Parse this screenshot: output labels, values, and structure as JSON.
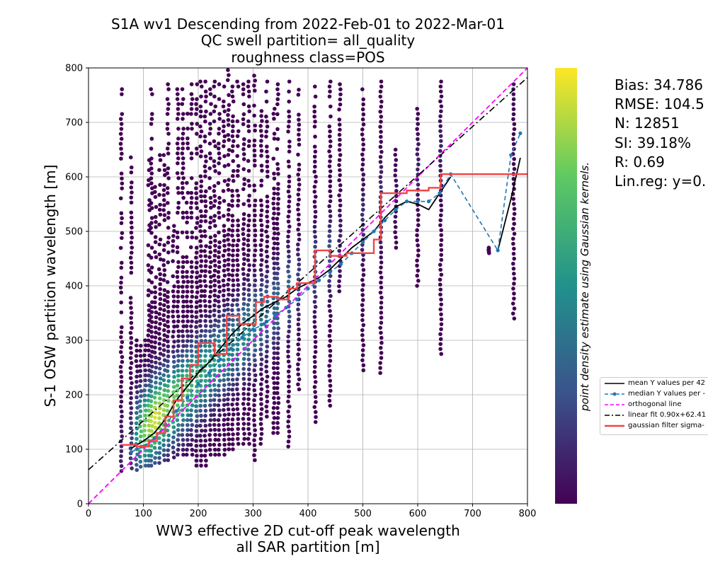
{
  "title": {
    "line1": "S1A wv1 Descending from 2022-Feb-01 to 2022-Mar-01",
    "line2": "QC swell partition= all_quality",
    "line3": "roughness class=POS"
  },
  "stats": {
    "bias": "Bias: 34.786",
    "rmse": "RMSE: 104.5",
    "n": "N: 12851",
    "si": "SI: 39.18%",
    "r": "R: 0.69",
    "linreg": "Lin.reg: y=0."
  },
  "legend": {
    "mean": "mean Y values per 42",
    "median": "median Y values per -",
    "orthogonal": "orthogonal line",
    "linfit": "linear fit 0.90x+62.41",
    "gaussian": "gaussian filter sigma-"
  },
  "colorbar_label": "point density estimate using Gaussian kernels.",
  "colors": {
    "mean_line": "#000000",
    "median_line": "#1f77b4",
    "orthogonal_line": "#ff00ff",
    "linear_fit": "#000000",
    "gaussian": "#f04545",
    "colormap": "viridis"
  },
  "chart_data": {
    "type": "scatter",
    "xlabel": "WW3 effective 2D cut-off peak wavelength\nall SAR partition [m]",
    "ylabel": "S-1 OSW partition wavelength [m]",
    "xlim": [
      0,
      800
    ],
    "ylim": [
      0,
      800
    ],
    "xticks": [
      0,
      100,
      200,
      300,
      400,
      500,
      600,
      700,
      800
    ],
    "yticks": [
      0,
      100,
      200,
      300,
      400,
      500,
      600,
      700,
      800
    ],
    "grid": true,
    "legend_position": "right, outside",
    "columns": [
      {
        "x": 60,
        "ymin": 60,
        "ymax": 770,
        "density": 0.1
      },
      {
        "x": 78,
        "ymin": 65,
        "ymax": 645,
        "density": 0.2
      },
      {
        "x": 88,
        "ymin": 62,
        "ymax": 300,
        "density": 0.5
      },
      {
        "x": 95,
        "ymin": 68,
        "ymax": 290,
        "density": 0.7
      },
      {
        "x": 103,
        "ymin": 70,
        "ymax": 300,
        "density": 0.8
      },
      {
        "x": 110,
        "ymin": 70,
        "ymax": 640,
        "density": 0.85
      },
      {
        "x": 115,
        "ymin": 70,
        "ymax": 770,
        "density": 0.9
      },
      {
        "x": 122,
        "ymin": 75,
        "ymax": 600,
        "density": 0.95
      },
      {
        "x": 130,
        "ymin": 75,
        "ymax": 640,
        "density": 0.9
      },
      {
        "x": 138,
        "ymin": 80,
        "ymax": 640,
        "density": 0.85
      },
      {
        "x": 145,
        "ymin": 80,
        "ymax": 770,
        "density": 0.8
      },
      {
        "x": 155,
        "ymin": 85,
        "ymax": 510,
        "density": 0.8
      },
      {
        "x": 163,
        "ymin": 90,
        "ymax": 770,
        "density": 0.75
      },
      {
        "x": 172,
        "ymin": 90,
        "ymax": 770,
        "density": 0.7
      },
      {
        "x": 180,
        "ymin": 90,
        "ymax": 725,
        "density": 0.7
      },
      {
        "x": 188,
        "ymin": 90,
        "ymax": 770,
        "density": 0.65
      },
      {
        "x": 197,
        "ymin": 70,
        "ymax": 770,
        "density": 0.65
      },
      {
        "x": 205,
        "ymin": 70,
        "ymax": 775,
        "density": 0.6
      },
      {
        "x": 213,
        "ymin": 70,
        "ymax": 775,
        "density": 0.6
      },
      {
        "x": 222,
        "ymin": 90,
        "ymax": 770,
        "density": 0.55
      },
      {
        "x": 230,
        "ymin": 90,
        "ymax": 775,
        "density": 0.55
      },
      {
        "x": 238,
        "ymin": 90,
        "ymax": 770,
        "density": 0.5
      },
      {
        "x": 247,
        "ymin": 90,
        "ymax": 775,
        "density": 0.5
      },
      {
        "x": 255,
        "ymin": 100,
        "ymax": 796,
        "density": 0.5
      },
      {
        "x": 263,
        "ymin": 100,
        "ymax": 775,
        "density": 0.45
      },
      {
        "x": 272,
        "ymin": 110,
        "ymax": 775,
        "density": 0.45
      },
      {
        "x": 283,
        "ymin": 110,
        "ymax": 770,
        "density": 0.5
      },
      {
        "x": 292,
        "ymin": 110,
        "ymax": 775,
        "density": 0.45
      },
      {
        "x": 303,
        "ymin": 80,
        "ymax": 795,
        "density": 0.45
      },
      {
        "x": 315,
        "ymin": 110,
        "ymax": 730,
        "density": 0.4
      },
      {
        "x": 325,
        "ymin": 160,
        "ymax": 775,
        "density": 0.35
      },
      {
        "x": 338,
        "ymin": 130,
        "ymax": 725,
        "density": 0.35
      },
      {
        "x": 345,
        "ymin": 130,
        "ymax": 770,
        "density": 0.35
      },
      {
        "x": 365,
        "ymin": 105,
        "ymax": 775,
        "density": 0.35
      },
      {
        "x": 383,
        "ymin": 210,
        "ymax": 760,
        "density": 0.2
      },
      {
        "x": 413,
        "ymin": 150,
        "ymax": 775,
        "density": 0.25
      },
      {
        "x": 440,
        "ymin": 180,
        "ymax": 775,
        "density": 0.25
      },
      {
        "x": 458,
        "ymin": 390,
        "ymax": 770,
        "density": 0.1
      },
      {
        "x": 500,
        "ymin": 245,
        "ymax": 770,
        "density": 0.15
      },
      {
        "x": 533,
        "ymin": 240,
        "ymax": 775,
        "density": 0.2
      },
      {
        "x": 560,
        "ymin": 470,
        "ymax": 650,
        "density": 0.05
      },
      {
        "x": 600,
        "ymin": 400,
        "ymax": 725,
        "density": 0.1
      },
      {
        "x": 642,
        "ymin": 275,
        "ymax": 775,
        "density": 0.1
      },
      {
        "x": 730,
        "ymin": 460,
        "ymax": 470,
        "density": 0.05
      },
      {
        "x": 775,
        "ymin": 340,
        "ymax": 770,
        "density": 0.05
      }
    ],
    "series": [
      {
        "name": "mean Y values per 42",
        "style": "solid",
        "x": [
          78,
          100,
          120,
          140,
          160,
          180,
          200,
          220,
          240,
          260,
          280,
          300,
          320,
          340,
          360,
          380,
          400,
          420,
          440,
          460,
          480,
          500,
          520,
          540,
          560,
          580,
          600,
          620,
          640,
          660
        ],
        "y": [
          102,
          115,
          130,
          155,
          190,
          215,
          240,
          260,
          285,
          310,
          330,
          345,
          360,
          370,
          380,
          395,
          405,
          415,
          430,
          450,
          470,
          485,
          500,
          525,
          545,
          555,
          550,
          540,
          570,
          600
        ]
      },
      {
        "name": "mean Y values per 42 (tail)",
        "style": "solid",
        "x": [
          746,
          770,
          787
        ],
        "y": [
          465,
          560,
          635
        ]
      },
      {
        "name": "median Y values per -",
        "style": "dashed-marker",
        "x": [
          78,
          100,
          120,
          140,
          160,
          180,
          200,
          220,
          240,
          260,
          280,
          300,
          320,
          340,
          360,
          380,
          400,
          420,
          440,
          460,
          480,
          500,
          520,
          540,
          560,
          580,
          600,
          620,
          640,
          660,
          746,
          770,
          787
        ],
        "y": [
          95,
          105,
          120,
          145,
          170,
          195,
          220,
          240,
          265,
          285,
          305,
          320,
          330,
          345,
          360,
          375,
          395,
          410,
          425,
          440,
          460,
          480,
          500,
          520,
          540,
          555,
          555,
          555,
          570,
          605,
          465,
          640,
          680
        ]
      },
      {
        "name": "orthogonal line",
        "style": "dashed",
        "x": [
          0,
          800
        ],
        "y": [
          0,
          800
        ]
      },
      {
        "name": "linear fit 0.90x+62.41",
        "style": "dashdot",
        "x": [
          0,
          800
        ],
        "y": [
          62.41,
          782.41
        ]
      },
      {
        "name": "gaussian filter sigma-",
        "style": "step",
        "x": [
          60,
          88,
          110,
          125,
          140,
          155,
          170,
          185,
          200,
          230,
          252,
          275,
          305,
          320,
          345,
          365,
          380,
          413,
          440,
          470,
          500,
          520,
          533,
          560,
          580,
          600,
          620,
          642,
          670,
          800
        ],
        "y": [
          108,
          105,
          115,
          130,
          160,
          190,
          230,
          255,
          295,
          275,
          345,
          330,
          370,
          380,
          375,
          395,
          405,
          465,
          455,
          460,
          460,
          485,
          570,
          570,
          575,
          575,
          580,
          605,
          605,
          605
        ]
      }
    ]
  }
}
